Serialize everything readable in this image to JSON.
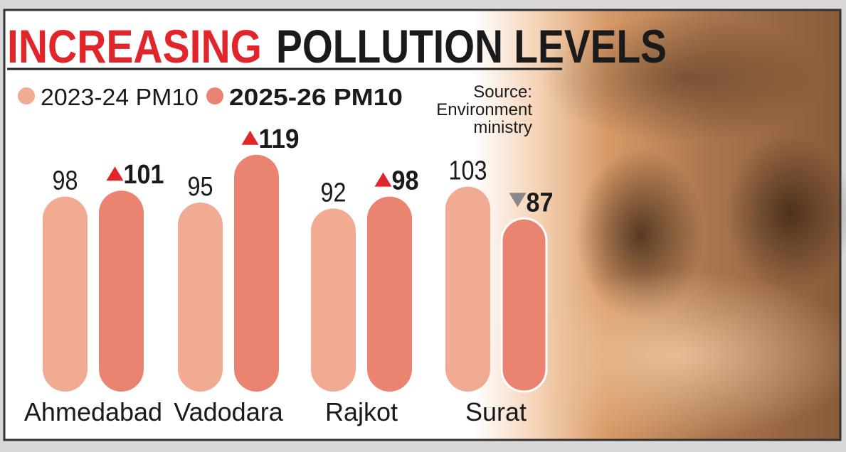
{
  "chart_data": {
    "type": "bar",
    "title": [
      "INCREASING",
      "POLLUTION LEVELS"
    ],
    "source": [
      "Source:",
      "Environment",
      "ministry"
    ],
    "categories": [
      "Ahmedabad",
      "Vadodara",
      "Rajkot",
      "Surat"
    ],
    "series": [
      {
        "name": "2023-24 PM10",
        "color": "#f2ab93",
        "values": [
          98,
          95,
          92,
          103
        ]
      },
      {
        "name": "2025-26 PM10",
        "color": "#ea8470",
        "values": [
          101,
          119,
          98,
          87
        ]
      }
    ]
  }
}
